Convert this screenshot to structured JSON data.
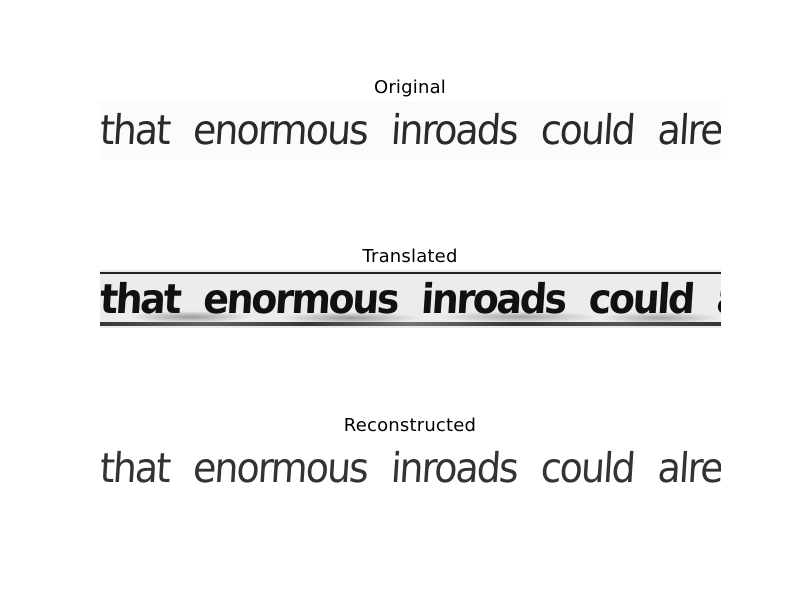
{
  "panels": [
    {
      "title": "Original",
      "text": [
        "that",
        "enormous",
        "inroads",
        "could",
        "already"
      ]
    },
    {
      "title": "Translated",
      "text": [
        "that",
        "enormous",
        "inroads",
        "could",
        "already"
      ]
    },
    {
      "title": "Reconstructed",
      "text": [
        "that",
        "enormous",
        "inroads",
        "could",
        "already"
      ]
    }
  ]
}
